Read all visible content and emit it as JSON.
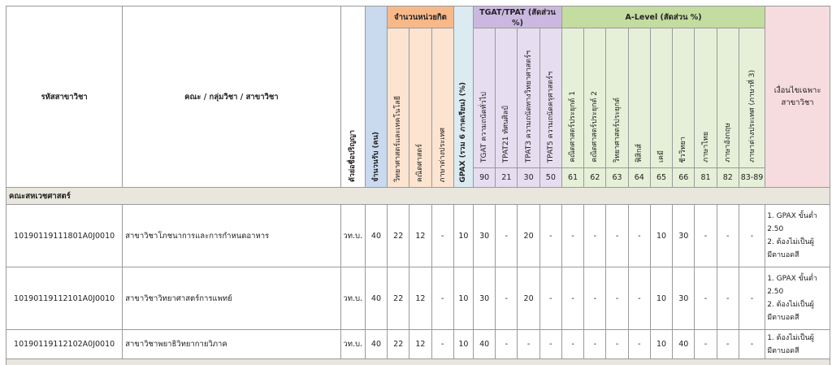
{
  "header": {
    "code": "รหัสสาขาวิชา",
    "program": "คณะ / กลุ่มวิชา / สาขาวิชา",
    "degree_abbr": "ตัวย่อชื่อปริญญา",
    "seats": "จำนวนรับ (คน)",
    "units_group": "จำนวนหน่วยกิต",
    "units": [
      "วิทยาศาสตร์และเทคโนโลยี",
      "คณิตศาสตร์",
      "ภาษาต่างประเทศ"
    ],
    "gpax": "GPAX (รวม 6 ภาคเรียน) (%)",
    "tgat_group": "TGAT/TPAT (สัดส่วน %)",
    "tgat": [
      {
        "label": "TGAT  ความถนัดทั่วไป",
        "code": "90"
      },
      {
        "label": "TPAT21  ทัศนศิลป์",
        "code": "21"
      },
      {
        "label": "TPAT3  ความถนัดทางวิทยาศาสตร์ฯ",
        "code": "30"
      },
      {
        "label": "TPAT5  ความถนัดครุศาสตร์ฯ",
        "code": "50"
      }
    ],
    "alevel_group": "A-Level (สัดส่วน %)",
    "alevel": [
      {
        "label": "คณิตศาสตร์ประยุกต์ 1",
        "code": "61"
      },
      {
        "label": "คณิตศาสตร์ประยุกต์ 2",
        "code": "62"
      },
      {
        "label": "วิทยาศาสตร์ประยุกต์",
        "code": "63"
      },
      {
        "label": "ฟิสิกส์",
        "code": "64"
      },
      {
        "label": "เคมี",
        "code": "65"
      },
      {
        "label": "ชีววิทยา",
        "code": "66"
      },
      {
        "label": "ภาษาไทย",
        "code": "81"
      },
      {
        "label": "ภาษาอังกฤษ",
        "code": "82"
      },
      {
        "label": "ภาษาต่างประเทศ (ภาษาที่ 3)",
        "code": "83-89"
      }
    ],
    "conditions": "เงื่อนไขเฉพาะสาขาวิชา"
  },
  "faculty": "คณะสหเวชศาสตร์",
  "rows": [
    {
      "code": "10190119111801A0J0010",
      "program": "สาขาวิชาโภชนาการและการกำหนดอาหาร",
      "degree": "วท.บ.",
      "seats": "40",
      "units": [
        "22",
        "12",
        "-"
      ],
      "gpax": "10",
      "tgat": [
        "30",
        "-",
        "20",
        "-"
      ],
      "alevel": [
        "-",
        "-",
        "-",
        "-",
        "10",
        "30",
        "-",
        "-",
        "-"
      ],
      "conditions": [
        "1. GPAX ขั้นต่ำ",
        "2.50",
        "2. ต้องไม่เป็นผู้",
        "มีตาบอดสี"
      ]
    },
    {
      "code": "10190119112101A0J0010",
      "program": "สาขาวิชาวิทยาศาสตร์การแพทย์",
      "degree": "วท.บ.",
      "seats": "40",
      "units": [
        "22",
        "12",
        "-"
      ],
      "gpax": "10",
      "tgat": [
        "30",
        "-",
        "20",
        "-"
      ],
      "alevel": [
        "-",
        "-",
        "-",
        "-",
        "10",
        "30",
        "-",
        "-",
        "-"
      ],
      "conditions": [
        "1. GPAX ขั้นต่ำ",
        "2.50",
        "2. ต้องไม่เป็นผู้",
        "มีตาบอดสี"
      ]
    },
    {
      "code": "10190119112102A0J0010",
      "program": "สาขาวิชาพยาธิวิทยากายวิภาค",
      "degree": "วท.บ.",
      "seats": "40",
      "units": [
        "22",
        "12",
        "-"
      ],
      "gpax": "10",
      "tgat": [
        "40",
        "-",
        "-",
        "-"
      ],
      "alevel": [
        "-",
        "-",
        "-",
        "-",
        "10",
        "40",
        "-",
        "-",
        "-"
      ],
      "conditions": [
        "1. ต้องไม่เป็นผู้",
        "มีตาบอดสี"
      ]
    }
  ]
}
